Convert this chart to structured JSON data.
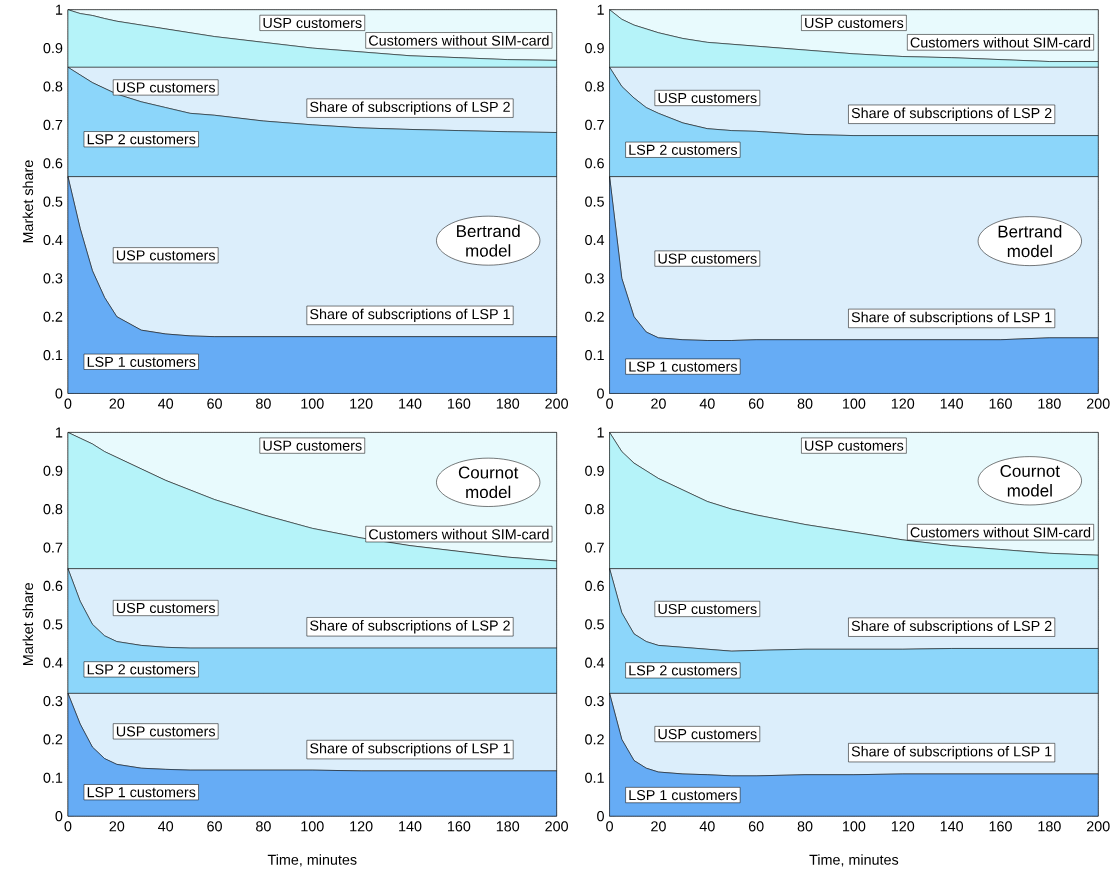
{
  "chart_data": [
    {
      "type": "area",
      "stacked": true,
      "ylabel": "Market share",
      "x": [
        0,
        5,
        10,
        15,
        20,
        30,
        40,
        50,
        60,
        80,
        100,
        120,
        140,
        160,
        180,
        200
      ],
      "xlim": [
        0,
        200
      ],
      "ylim": [
        0,
        1
      ],
      "xticks": [
        0,
        20,
        40,
        60,
        80,
        100,
        120,
        140,
        160,
        180,
        200
      ],
      "yticks": [
        0,
        0.1,
        0.2,
        0.3,
        0.4,
        0.5,
        0.6,
        0.7,
        0.8,
        0.9,
        1
      ],
      "grid": true,
      "series": [
        {
          "name": "LSP 1 customers",
          "color": "#66acf5",
          "values": [
            0.565,
            0.43,
            0.32,
            0.25,
            0.2,
            0.165,
            0.155,
            0.15,
            0.148,
            0.148,
            0.148,
            0.148,
            0.148,
            0.148,
            0.148,
            0.148
          ]
        },
        {
          "name": "USP customers",
          "color": "#dceefb",
          "values": [
            0,
            0.135,
            0.245,
            0.315,
            0.365,
            0.4,
            0.41,
            0.415,
            0.417,
            0.417,
            0.417,
            0.417,
            0.417,
            0.417,
            0.417,
            0.417
          ]
        },
        {
          "name": "LSP 2 customers",
          "color": "#8cd6fa",
          "values": [
            0.285,
            0.265,
            0.245,
            0.23,
            0.215,
            0.195,
            0.18,
            0.165,
            0.16,
            0.145,
            0.135,
            0.127,
            0.123,
            0.12,
            0.117,
            0.115
          ]
        },
        {
          "name": "USP customers",
          "color": "#dceefb",
          "values": [
            0,
            0.02,
            0.04,
            0.055,
            0.07,
            0.09,
            0.105,
            0.12,
            0.125,
            0.14,
            0.15,
            0.158,
            0.162,
            0.165,
            0.168,
            0.17
          ]
        },
        {
          "name": "Customers without SIM-card",
          "color": "#b5f3f9",
          "values": [
            0.15,
            0.14,
            0.135,
            0.127,
            0.12,
            0.11,
            0.1,
            0.09,
            0.08,
            0.065,
            0.05,
            0.04,
            0.03,
            0.025,
            0.02,
            0.018
          ]
        },
        {
          "name": "USP customers",
          "color": "#e8fafd",
          "values": [
            0,
            0.01,
            0.015,
            0.023,
            0.03,
            0.04,
            0.05,
            0.06,
            0.07,
            0.085,
            0.1,
            0.11,
            0.12,
            0.125,
            0.13,
            0.132
          ]
        }
      ],
      "annotations": [
        "Share of subscriptions of LSP 1",
        "Share of subscriptions of LSP 2",
        "Bertrand model"
      ]
    },
    {
      "type": "area",
      "stacked": true,
      "x": [
        0,
        5,
        10,
        15,
        20,
        30,
        40,
        50,
        60,
        80,
        100,
        120,
        140,
        160,
        180,
        200
      ],
      "xlim": [
        0,
        200
      ],
      "ylim": [
        0,
        1
      ],
      "xticks": [
        0,
        20,
        40,
        60,
        80,
        100,
        120,
        140,
        160,
        180,
        200
      ],
      "yticks": [
        0,
        0.1,
        0.2,
        0.3,
        0.4,
        0.5,
        0.6,
        0.7,
        0.8,
        0.9,
        1
      ],
      "grid": true,
      "series": [
        {
          "name": "LSP 1 customers",
          "color": "#66acf5",
          "values": [
            0.565,
            0.3,
            0.2,
            0.16,
            0.145,
            0.14,
            0.138,
            0.138,
            0.14,
            0.14,
            0.14,
            0.14,
            0.14,
            0.14,
            0.145,
            0.145
          ]
        },
        {
          "name": "USP customers",
          "color": "#dceefb",
          "values": [
            0,
            0.265,
            0.365,
            0.405,
            0.42,
            0.425,
            0.427,
            0.427,
            0.425,
            0.425,
            0.425,
            0.425,
            0.425,
            0.425,
            0.42,
            0.42
          ]
        },
        {
          "name": "LSP 2 customers",
          "color": "#8cd6fa",
          "values": [
            0.285,
            0.235,
            0.205,
            0.18,
            0.165,
            0.14,
            0.125,
            0.12,
            0.118,
            0.11,
            0.107,
            0.107,
            0.107,
            0.107,
            0.107,
            0.107
          ]
        },
        {
          "name": "USP customers",
          "color": "#dceefb",
          "values": [
            0,
            0.05,
            0.08,
            0.105,
            0.12,
            0.145,
            0.16,
            0.165,
            0.167,
            0.175,
            0.178,
            0.178,
            0.178,
            0.178,
            0.178,
            0.178
          ]
        },
        {
          "name": "Customers without SIM-card",
          "color": "#b5f3f9",
          "values": [
            0.15,
            0.125,
            0.11,
            0.1,
            0.09,
            0.075,
            0.065,
            0.06,
            0.055,
            0.045,
            0.035,
            0.028,
            0.025,
            0.02,
            0.015,
            0.015
          ]
        },
        {
          "name": "USP customers",
          "color": "#e8fafd",
          "values": [
            0,
            0.025,
            0.04,
            0.05,
            0.06,
            0.075,
            0.085,
            0.09,
            0.095,
            0.105,
            0.115,
            0.122,
            0.125,
            0.13,
            0.135,
            0.135
          ]
        }
      ],
      "annotations": [
        "Share of subscriptions of LSP 1",
        "Share of subscriptions of LSP 2",
        "Bertrand model"
      ]
    },
    {
      "type": "area",
      "stacked": true,
      "ylabel": "Market share",
      "xlabel": "Time, minutes",
      "x": [
        0,
        5,
        10,
        15,
        20,
        30,
        40,
        50,
        60,
        80,
        100,
        120,
        140,
        160,
        180,
        200
      ],
      "xlim": [
        0,
        200
      ],
      "ylim": [
        0,
        1
      ],
      "xticks": [
        0,
        20,
        40,
        60,
        80,
        100,
        120,
        140,
        160,
        180,
        200
      ],
      "yticks": [
        0,
        0.1,
        0.2,
        0.3,
        0.4,
        0.5,
        0.6,
        0.7,
        0.8,
        0.9,
        1
      ],
      "grid": true,
      "series": [
        {
          "name": "LSP 1 customers",
          "color": "#66acf5",
          "values": [
            0.32,
            0.24,
            0.18,
            0.15,
            0.135,
            0.125,
            0.122,
            0.12,
            0.12,
            0.12,
            0.12,
            0.118,
            0.118,
            0.118,
            0.118,
            0.118
          ]
        },
        {
          "name": "USP customers",
          "color": "#dceefb",
          "values": [
            0,
            0.08,
            0.14,
            0.17,
            0.185,
            0.195,
            0.198,
            0.2,
            0.2,
            0.2,
            0.2,
            0.202,
            0.202,
            0.202,
            0.202,
            0.202
          ]
        },
        {
          "name": "LSP 2 customers",
          "color": "#8cd6fa",
          "values": [
            0.325,
            0.24,
            0.18,
            0.15,
            0.135,
            0.125,
            0.12,
            0.118,
            0.118,
            0.118,
            0.118,
            0.118,
            0.118,
            0.118,
            0.118,
            0.118
          ]
        },
        {
          "name": "USP customers",
          "color": "#dceefb",
          "values": [
            0,
            0.085,
            0.145,
            0.175,
            0.19,
            0.2,
            0.205,
            0.207,
            0.207,
            0.207,
            0.207,
            0.207,
            0.207,
            0.207,
            0.207,
            0.207
          ]
        },
        {
          "name": "Customers without SIM-card",
          "color": "#b5f3f9",
          "values": [
            0.355,
            0.34,
            0.325,
            0.305,
            0.29,
            0.26,
            0.23,
            0.205,
            0.18,
            0.14,
            0.105,
            0.08,
            0.06,
            0.045,
            0.03,
            0.02
          ]
        },
        {
          "name": "USP customers",
          "color": "#e8fafd",
          "values": [
            0,
            0.015,
            0.03,
            0.05,
            0.065,
            0.095,
            0.125,
            0.15,
            0.175,
            0.215,
            0.25,
            0.275,
            0.295,
            0.31,
            0.325,
            0.335
          ]
        }
      ],
      "annotations": [
        "Share of subscriptions of LSP 1",
        "Share of subscriptions of LSP 2",
        "Cournot model"
      ]
    },
    {
      "type": "area",
      "stacked": true,
      "xlabel": "Time, minutes",
      "x": [
        0,
        5,
        10,
        15,
        20,
        30,
        40,
        50,
        60,
        80,
        100,
        120,
        140,
        160,
        180,
        200
      ],
      "xlim": [
        0,
        200
      ],
      "ylim": [
        0,
        1
      ],
      "xticks": [
        0,
        20,
        40,
        60,
        80,
        100,
        120,
        140,
        160,
        180,
        200
      ],
      "yticks": [
        0,
        0.1,
        0.2,
        0.3,
        0.4,
        0.5,
        0.6,
        0.7,
        0.8,
        0.9,
        1
      ],
      "grid": true,
      "series": [
        {
          "name": "LSP 1 customers",
          "color": "#66acf5",
          "values": [
            0.32,
            0.2,
            0.145,
            0.125,
            0.115,
            0.11,
            0.108,
            0.105,
            0.105,
            0.108,
            0.108,
            0.11,
            0.11,
            0.11,
            0.11,
            0.11
          ]
        },
        {
          "name": "USP customers",
          "color": "#dceefb",
          "values": [
            0,
            0.12,
            0.175,
            0.195,
            0.205,
            0.21,
            0.212,
            0.215,
            0.215,
            0.212,
            0.212,
            0.21,
            0.21,
            0.21,
            0.21,
            0.21
          ]
        },
        {
          "name": "LSP 2 customers",
          "color": "#8cd6fa",
          "values": [
            0.325,
            0.21,
            0.155,
            0.135,
            0.125,
            0.12,
            0.115,
            0.11,
            0.112,
            0.115,
            0.115,
            0.115,
            0.117,
            0.117,
            0.117,
            0.117
          ]
        },
        {
          "name": "USP customers",
          "color": "#dceefb",
          "values": [
            0,
            0.115,
            0.17,
            0.19,
            0.2,
            0.205,
            0.21,
            0.215,
            0.213,
            0.21,
            0.21,
            0.21,
            0.208,
            0.208,
            0.208,
            0.208
          ]
        },
        {
          "name": "Customers without SIM-card",
          "color": "#b5f3f9",
          "values": [
            0.355,
            0.305,
            0.275,
            0.255,
            0.235,
            0.205,
            0.175,
            0.155,
            0.14,
            0.115,
            0.095,
            0.075,
            0.06,
            0.05,
            0.04,
            0.035
          ]
        },
        {
          "name": "USP customers",
          "color": "#e8fafd",
          "values": [
            0,
            0.05,
            0.08,
            0.1,
            0.12,
            0.15,
            0.18,
            0.2,
            0.215,
            0.24,
            0.26,
            0.28,
            0.295,
            0.305,
            0.315,
            0.32
          ]
        }
      ],
      "annotations": [
        "Share of subscriptions of LSP 1",
        "Share of subscriptions of LSP 2",
        "Cournot model"
      ]
    }
  ]
}
